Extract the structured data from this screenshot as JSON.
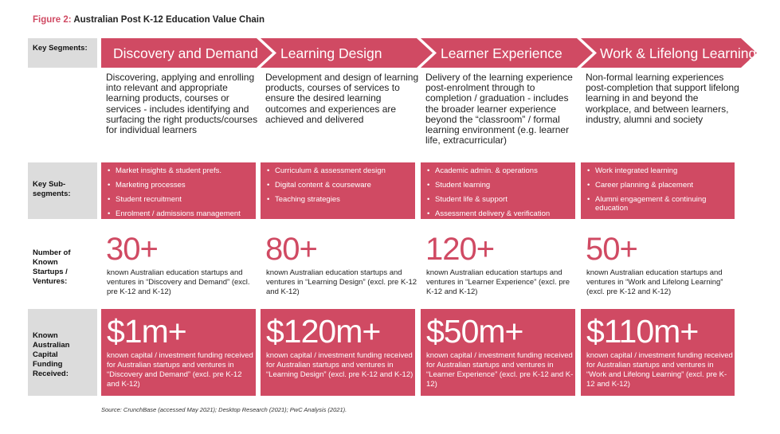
{
  "title": {
    "figure": "Figure 2:",
    "text": "Australian Post K-12 Education Value Chain"
  },
  "accent_color": "#d04a63",
  "row_labels": {
    "segments": "Key Segments:",
    "sub_segments": "Key Sub-segments:",
    "startups": "Number of Known Startups / Ventures:",
    "funding": "Known Australian Capital Funding Received:"
  },
  "columns": [
    {
      "segment": "Discovery and Demand",
      "description": "Discovering, applying and enrolling into relevant and appropriate learning products, courses or services - includes identifying and surfacing the right products/courses for individual learners",
      "sub_segments": [
        "Market insights & student prefs.",
        "Marketing processes",
        "Student recruitment",
        "Enrolment / admissions management"
      ],
      "startups_count": "30+",
      "startups_text": "known Australian education startups and ventures in “Discovery and Demand” (excl. pre K-12 and K-12)",
      "funding_amount": "$1m+",
      "funding_text": "known capital / investment funding received for Australian startups and ventures in “Discovery and Demand” (excl. pre K-12 and K-12)"
    },
    {
      "segment": "Learning Design",
      "description": "Development and design of learning products, courses of services to ensure the desired learning outcomes and experiences are achieved and delivered",
      "sub_segments": [
        "Curriculum & assessment design",
        "Digital content & courseware",
        "Teaching strategies"
      ],
      "startups_count": "80+",
      "startups_text": "known Australian education startups and ventures in “Learning Design” (excl. pre K-12 and K-12)",
      "funding_amount": "$120m+",
      "funding_text": "known capital / investment funding received for Australian startups and ventures in “Learning Design” (excl. pre K-12 and K-12)"
    },
    {
      "segment": "Learner Experience",
      "description": "Delivery of the learning experience post-enrolment through to completion / graduation - includes the broader learner experience beyond the “classroom” / formal learning environment (e.g. learner life, extracurricular)",
      "sub_segments": [
        "Academic admin. & operations",
        "Student learning",
        "Student life & support",
        "Assessment delivery & verification"
      ],
      "startups_count": "120+",
      "startups_text": "known Australian education startups and ventures in “Learner Experience” (excl. pre K-12 and K-12)",
      "funding_amount": "$50m+",
      "funding_text": "known capital / investment funding received for Australian startups and ventures in “Learner Experience” (excl. pre K-12 and K-12)"
    },
    {
      "segment": "Work & Lifelong Learning",
      "description": "Non-formal learning experiences post-completion that support lifelong learning in and beyond the workplace, and between learners, industry, alumni and society",
      "sub_segments": [
        "Work integrated learning",
        "Career planning & placement",
        "Alumni engagement & continuing education"
      ],
      "startups_count": "50+",
      "startups_text": "known Australian education startups and ventures in “Work and Lifelong Learning” (excl. pre K-12 and K-12)",
      "funding_amount": "$110m+",
      "funding_text": "known capital / investment funding received for Australian startups and ventures in “Work and Lifelong Learning” (excl. pre K-12 and K-12)"
    }
  ],
  "source": "Source: CrunchBase (accessed May 2021); Desktop Research (2021); PwC Analysis (2021)."
}
